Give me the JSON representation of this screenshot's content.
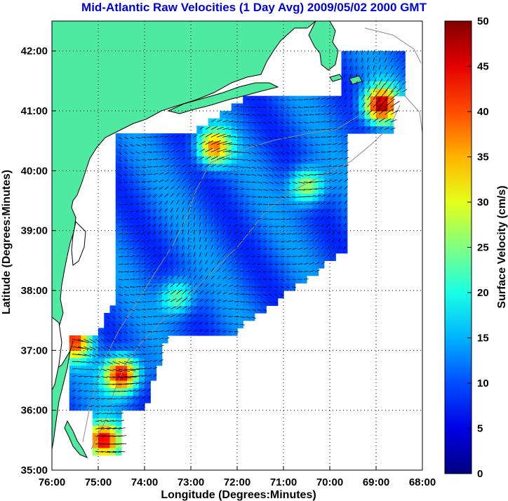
{
  "chart_data": {
    "type": "heatmap",
    "title": "Mid-Atlantic Raw Velocities (1 Day Avg) 2009/05/02 2000 GMT",
    "xlabel": "Longitude (Degrees:Minutes)",
    "ylabel": "Latitude (Degrees:Minutes)",
    "x_ticks": [
      "76:00",
      "75:00",
      "74:00",
      "73:00",
      "72:00",
      "71:00",
      "70:00",
      "69:00",
      "68:00"
    ],
    "x_tick_values": [
      -76,
      -75,
      -74,
      -73,
      -72,
      -71,
      -70,
      -69,
      -68
    ],
    "y_ticks": [
      "35:00",
      "36:00",
      "37:00",
      "38:00",
      "39:00",
      "40:00",
      "41:00",
      "42:00"
    ],
    "y_tick_values": [
      35,
      36,
      37,
      38,
      39,
      40,
      41,
      42
    ],
    "xlim": [
      -76,
      -68
    ],
    "ylim": [
      35,
      42.5
    ],
    "grid": true,
    "colorbar": {
      "label": "Surface Velocity (cm/s)",
      "range": [
        0,
        50
      ],
      "ticks": [
        0,
        5,
        10,
        15,
        20,
        25,
        30,
        35,
        40,
        45,
        50
      ],
      "tick_labels": [
        "0",
        "5",
        "10",
        "15",
        "20",
        "25",
        "30",
        "35",
        "40",
        "45",
        "50"
      ],
      "colormap": "jet"
    },
    "hotspots": [
      {
        "lon": -68.9,
        "lat": 41.1,
        "speed": 48
      },
      {
        "lon": -74.5,
        "lat": 36.6,
        "speed": 48
      },
      {
        "lon": -74.9,
        "lat": 35.5,
        "speed": 45
      },
      {
        "lon": -72.5,
        "lat": 40.4,
        "speed": 38
      },
      {
        "lon": -70.5,
        "lat": 39.75,
        "speed": 30
      },
      {
        "lon": -73.3,
        "lat": 37.9,
        "speed": 26
      },
      {
        "lon": -75.5,
        "lat": 37.15,
        "speed": 40
      }
    ],
    "background_speed": 11
  },
  "colors": {
    "land": "#4eeaa0",
    "title": "#0000e0",
    "coast": "#000000",
    "bathymetry": "#8c8c8c",
    "vectors": "#000000"
  }
}
